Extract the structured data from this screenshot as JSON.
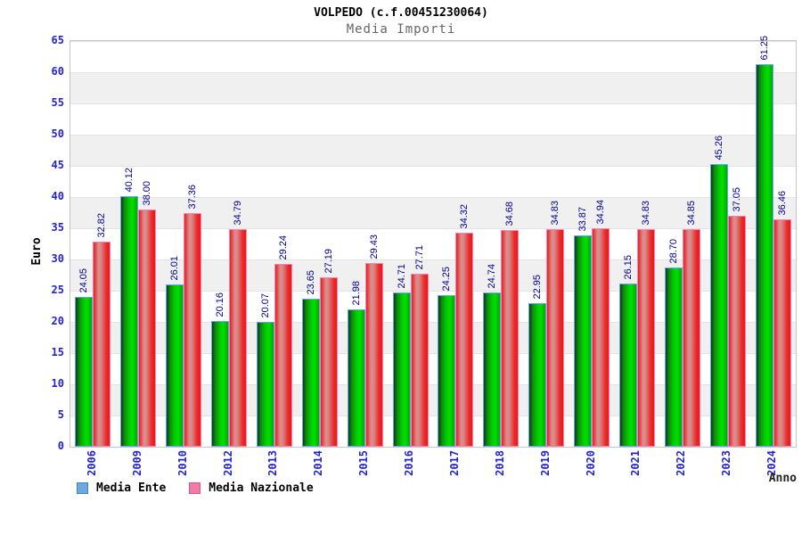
{
  "header": {
    "title": "VOLPEDO (c.f.00451230064)",
    "subtitle": "Media Importi"
  },
  "y_axis": {
    "title": "Euro",
    "ticks": [
      0,
      5,
      10,
      15,
      20,
      25,
      30,
      35,
      40,
      45,
      50,
      55,
      60,
      65
    ]
  },
  "x_axis": {
    "title": "Anno"
  },
  "legend": {
    "items": [
      {
        "label": "Media Ente",
        "swatch_color": "#6fa8dc",
        "swatch_border": "#3d85c6"
      },
      {
        "label": "Media Nazionale",
        "swatch_color": "#f07ca8",
        "swatch_border": "#d5568a"
      }
    ]
  },
  "colors": {
    "bar_ente_main": "#00cc00",
    "bar_ente_border": "#66a3ff",
    "bar_nazionale_main": "#e32020",
    "bar_nazionale_border": "#ff7fae",
    "axis_text": "#2424c8",
    "value_text": "#00008c",
    "band_gray": "#f0f0f0"
  },
  "chart_data": {
    "type": "bar",
    "title": "VOLPEDO (c.f.00451230064)",
    "subtitle": "Media Importi",
    "xlabel": "Anno",
    "ylabel": "Euro",
    "ylim": [
      0,
      65
    ],
    "y_tick_step": 5,
    "grid": "horizontal-bands",
    "legend_position": "bottom-left",
    "categories": [
      "2006",
      "2009",
      "2010",
      "2012",
      "2013",
      "2014",
      "2015",
      "2016",
      "2017",
      "2018",
      "2019",
      "2020",
      "2021",
      "2022",
      "2023",
      "2024"
    ],
    "series": [
      {
        "name": "Media Ente",
        "values": [
          24.05,
          40.12,
          26.01,
          20.16,
          20.07,
          23.65,
          21.98,
          24.71,
          24.25,
          24.74,
          22.95,
          33.87,
          26.15,
          28.7,
          45.26,
          61.25
        ],
        "labels": [
          "24.05",
          "40.12",
          "26.01",
          "20.16",
          "20.07",
          "23.65",
          "21.98",
          "24.71",
          "24.25",
          "24.74",
          "22.95",
          "33.87",
          "26.15",
          "28.70",
          "45.26",
          "61.25"
        ]
      },
      {
        "name": "Media Nazionale",
        "values": [
          32.82,
          38.0,
          37.36,
          34.79,
          29.24,
          27.19,
          29.43,
          27.71,
          34.32,
          34.68,
          34.83,
          34.94,
          34.83,
          34.85,
          37.05,
          36.46
        ],
        "labels": [
          "32.82",
          "38.00",
          "37.36",
          "34.79",
          "29.24",
          "27.19",
          "29.43",
          "27.71",
          "34.32",
          "34.68",
          "34.83",
          "34.94",
          "34.83",
          "34.85",
          "37.05",
          "36.46"
        ]
      }
    ]
  }
}
